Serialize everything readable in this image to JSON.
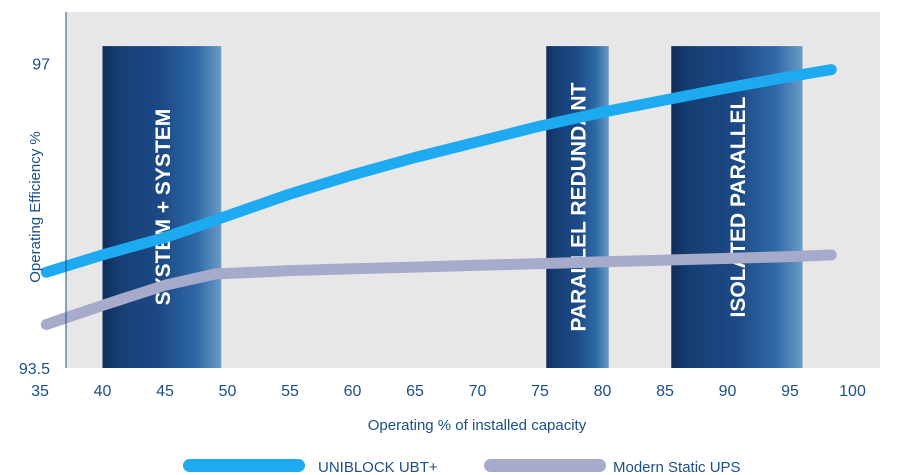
{
  "chart_data": {
    "type": "line",
    "xlabel": "Operating % of installed capacity",
    "ylabel": "Operating Efficiency %",
    "xlim": [
      35,
      100
    ],
    "ylim": [
      93.5,
      97.6
    ],
    "x_ticks": [
      "35",
      "40",
      "45",
      "50",
      "55",
      "60",
      "65",
      "70",
      "75",
      "80",
      "85",
      "90",
      "95",
      "100"
    ],
    "y_ticks": [
      {
        "value": 97,
        "label": "97"
      },
      {
        "value": 93.5,
        "label": "93.5"
      }
    ],
    "grid": false,
    "legend_position": "bottom",
    "bands": [
      {
        "label": "SYSTEM + SYSTEM",
        "x_start": 40,
        "x_end": 49.5,
        "y_top": 97.2
      },
      {
        "label": "PARALLEL REDUNDANT",
        "x_start": 75.5,
        "x_end": 80.5,
        "y_top": 97.2
      },
      {
        "label": "ISOLATED PARALLEL",
        "x_start": 85.5,
        "x_end": 96,
        "y_top": 97.2
      }
    ],
    "series": [
      {
        "name": "UNIBLOCK UBT+",
        "color": "#1eaaf0",
        "x": [
          35.5,
          40,
          45,
          50,
          55,
          60,
          65,
          70,
          75,
          80,
          85,
          90,
          95,
          98.3
        ],
        "y": [
          94.6,
          94.8,
          95.0,
          95.25,
          95.5,
          95.72,
          95.92,
          96.1,
          96.28,
          96.44,
          96.58,
          96.72,
          96.85,
          96.93
        ]
      },
      {
        "name": "Modern Static UPS",
        "color": "#a6abcb",
        "x": [
          35.5,
          40,
          45,
          49,
          55,
          60,
          65,
          70,
          75,
          80,
          85,
          90,
          95,
          98.3
        ],
        "y": [
          94.0,
          94.22,
          94.45,
          94.58,
          94.62,
          94.64,
          94.66,
          94.68,
          94.7,
          94.72,
          94.74,
          94.76,
          94.78,
          94.8
        ]
      }
    ]
  }
}
